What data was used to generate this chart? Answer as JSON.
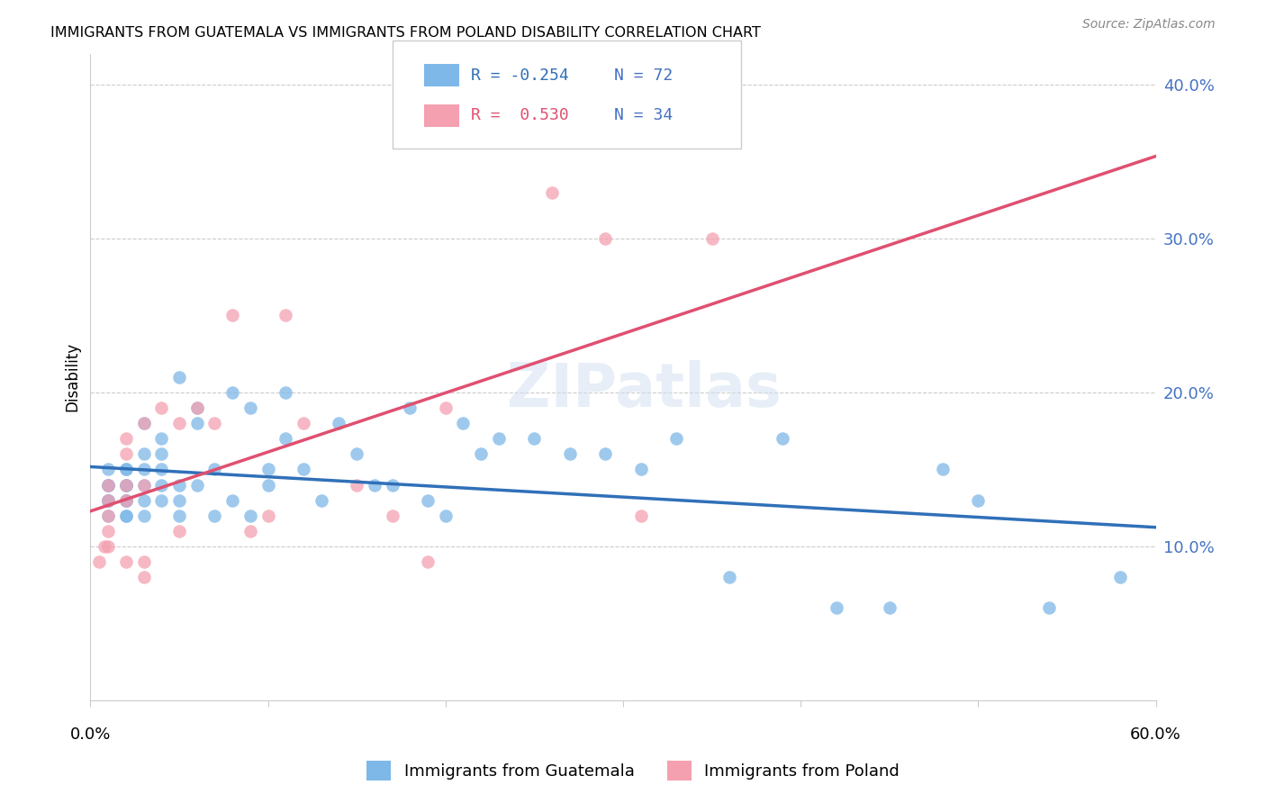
{
  "title": "IMMIGRANTS FROM GUATEMALA VS IMMIGRANTS FROM POLAND DISABILITY CORRELATION CHART",
  "source": "Source: ZipAtlas.com",
  "ylabel": "Disability",
  "xlim": [
    0.0,
    0.6
  ],
  "ylim": [
    0.0,
    0.42
  ],
  "ytick_labels": [
    "10.0%",
    "20.0%",
    "30.0%",
    "40.0%"
  ],
  "guatemala_color": "#7EB8E8",
  "poland_color": "#F4A0B0",
  "guatemala_line_color": "#3070B8",
  "poland_line_color": "#E05070",
  "diag_line_color": "#D0A0A8",
  "R_guatemala": -0.254,
  "N_guatemala": 72,
  "R_poland": 0.53,
  "N_poland": 34,
  "watermark": "ZIPatlas",
  "guatemala_x": [
    0.01,
    0.01,
    0.01,
    0.01,
    0.01,
    0.01,
    0.01,
    0.01,
    0.01,
    0.02,
    0.02,
    0.02,
    0.02,
    0.02,
    0.02,
    0.02,
    0.02,
    0.02,
    0.02,
    0.03,
    0.03,
    0.03,
    0.03,
    0.03,
    0.03,
    0.04,
    0.04,
    0.04,
    0.04,
    0.04,
    0.05,
    0.05,
    0.05,
    0.05,
    0.06,
    0.06,
    0.06,
    0.07,
    0.07,
    0.08,
    0.08,
    0.09,
    0.09,
    0.1,
    0.1,
    0.11,
    0.11,
    0.12,
    0.13,
    0.14,
    0.15,
    0.16,
    0.17,
    0.18,
    0.19,
    0.2,
    0.21,
    0.22,
    0.23,
    0.25,
    0.27,
    0.29,
    0.31,
    0.33,
    0.36,
    0.39,
    0.42,
    0.45,
    0.48,
    0.5,
    0.54,
    0.58
  ],
  "guatemala_y": [
    0.13,
    0.14,
    0.13,
    0.14,
    0.15,
    0.13,
    0.12,
    0.13,
    0.14,
    0.14,
    0.15,
    0.13,
    0.14,
    0.12,
    0.13,
    0.15,
    0.14,
    0.13,
    0.12,
    0.15,
    0.16,
    0.14,
    0.13,
    0.12,
    0.18,
    0.17,
    0.15,
    0.14,
    0.16,
    0.13,
    0.21,
    0.14,
    0.12,
    0.13,
    0.19,
    0.18,
    0.14,
    0.15,
    0.12,
    0.2,
    0.13,
    0.19,
    0.12,
    0.15,
    0.14,
    0.2,
    0.17,
    0.15,
    0.13,
    0.18,
    0.16,
    0.14,
    0.14,
    0.19,
    0.13,
    0.12,
    0.18,
    0.16,
    0.17,
    0.17,
    0.16,
    0.16,
    0.15,
    0.17,
    0.08,
    0.17,
    0.06,
    0.06,
    0.15,
    0.13,
    0.06,
    0.08
  ],
  "poland_x": [
    0.005,
    0.008,
    0.01,
    0.01,
    0.01,
    0.01,
    0.01,
    0.02,
    0.02,
    0.02,
    0.02,
    0.02,
    0.03,
    0.03,
    0.03,
    0.03,
    0.04,
    0.05,
    0.05,
    0.06,
    0.07,
    0.08,
    0.09,
    0.1,
    0.11,
    0.12,
    0.15,
    0.17,
    0.19,
    0.2,
    0.26,
    0.29,
    0.31,
    0.35
  ],
  "poland_y": [
    0.09,
    0.1,
    0.14,
    0.1,
    0.12,
    0.13,
    0.11,
    0.16,
    0.17,
    0.14,
    0.13,
    0.09,
    0.18,
    0.14,
    0.09,
    0.08,
    0.19,
    0.18,
    0.11,
    0.19,
    0.18,
    0.25,
    0.11,
    0.12,
    0.25,
    0.18,
    0.14,
    0.12,
    0.09,
    0.19,
    0.33,
    0.3,
    0.12,
    0.3
  ]
}
